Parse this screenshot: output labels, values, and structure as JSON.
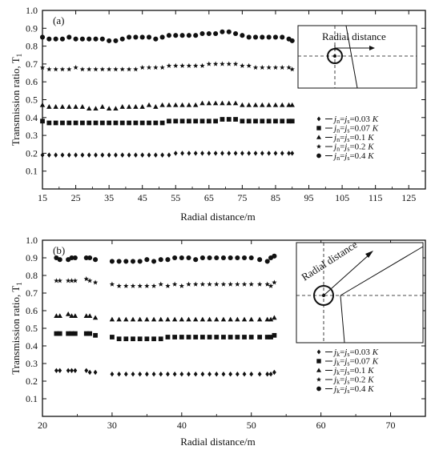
{
  "chart_data": [
    {
      "type": "scatter",
      "panel_label": "(a)",
      "xlabel": "Radial distance/m",
      "ylabel": "Transmission ratio, T",
      "ylabel_sub": "1",
      "xlim": [
        15,
        130
      ],
      "ylim": [
        0.0,
        1.0
      ],
      "xticks": [
        "15",
        "25",
        "35",
        "45",
        "55",
        "65",
        "75",
        "85",
        "95",
        "105",
        "115",
        "125"
      ],
      "yticks": [
        "0.1",
        "0.2",
        "0.3",
        "0.4",
        "0.5",
        "0.6",
        "0.7",
        "0.8",
        "0.9",
        "1.0"
      ],
      "inset_label": "Radial distance",
      "legend": [
        {
          "marker": "diamond",
          "j1": "j",
          "s1": "n",
          "j2": "j",
          "s2": "s",
          "val": "=0.03",
          "K": "K"
        },
        {
          "marker": "square",
          "j1": "j",
          "s1": "n",
          "j2": "j",
          "s2": "s",
          "val": "=0.07",
          "K": "K"
        },
        {
          "marker": "triangle",
          "j1": "j",
          "s1": "n",
          "j2": "j",
          "s2": "s",
          "val": "=0.1",
          "K": "K"
        },
        {
          "marker": "star",
          "j1": "j",
          "s1": "n",
          "j2": "j",
          "s2": "s",
          "val": "=0.2",
          "K": "K"
        },
        {
          "marker": "circle",
          "j1": "j",
          "s1": "n",
          "j2": "j",
          "s2": "s",
          "val": "=0.4",
          "K": "K"
        }
      ],
      "series": [
        {
          "marker": "circle",
          "x": [
            15,
            17,
            19,
            21,
            23,
            25,
            27,
            29,
            31,
            33,
            35,
            37,
            39,
            41,
            43,
            45,
            47,
            49,
            51,
            53,
            55,
            57,
            59,
            61,
            63,
            65,
            67,
            69,
            71,
            73,
            75,
            77,
            79,
            81,
            83,
            85,
            87,
            89,
            90
          ],
          "y": [
            0.85,
            0.84,
            0.84,
            0.84,
            0.85,
            0.84,
            0.84,
            0.84,
            0.84,
            0.84,
            0.83,
            0.83,
            0.84,
            0.85,
            0.85,
            0.85,
            0.85,
            0.84,
            0.85,
            0.86,
            0.86,
            0.86,
            0.86,
            0.86,
            0.87,
            0.87,
            0.87,
            0.88,
            0.88,
            0.87,
            0.86,
            0.85,
            0.85,
            0.85,
            0.85,
            0.85,
            0.85,
            0.84,
            0.83
          ]
        },
        {
          "marker": "star",
          "x": [
            15,
            17,
            19,
            21,
            23,
            25,
            27,
            29,
            31,
            33,
            35,
            37,
            39,
            41,
            43,
            45,
            47,
            49,
            51,
            53,
            55,
            57,
            59,
            61,
            63,
            65,
            67,
            69,
            71,
            73,
            75,
            77,
            79,
            81,
            83,
            85,
            87,
            89,
            90
          ],
          "y": [
            0.68,
            0.67,
            0.67,
            0.67,
            0.67,
            0.68,
            0.67,
            0.67,
            0.67,
            0.67,
            0.67,
            0.67,
            0.67,
            0.67,
            0.67,
            0.68,
            0.68,
            0.68,
            0.68,
            0.69,
            0.69,
            0.69,
            0.69,
            0.69,
            0.69,
            0.7,
            0.7,
            0.7,
            0.7,
            0.7,
            0.69,
            0.69,
            0.68,
            0.68,
            0.68,
            0.68,
            0.68,
            0.68,
            0.67
          ]
        },
        {
          "marker": "triangle",
          "x": [
            15,
            17,
            19,
            21,
            23,
            25,
            27,
            29,
            31,
            33,
            35,
            37,
            39,
            41,
            43,
            45,
            47,
            49,
            51,
            53,
            55,
            57,
            59,
            61,
            63,
            65,
            67,
            69,
            71,
            73,
            75,
            77,
            79,
            81,
            83,
            85,
            87,
            89,
            90
          ],
          "y": [
            0.47,
            0.46,
            0.46,
            0.46,
            0.46,
            0.46,
            0.46,
            0.45,
            0.45,
            0.46,
            0.45,
            0.45,
            0.46,
            0.46,
            0.46,
            0.46,
            0.47,
            0.46,
            0.47,
            0.47,
            0.47,
            0.47,
            0.47,
            0.47,
            0.48,
            0.48,
            0.48,
            0.48,
            0.48,
            0.48,
            0.47,
            0.47,
            0.47,
            0.47,
            0.47,
            0.47,
            0.47,
            0.47,
            0.47
          ]
        },
        {
          "marker": "square",
          "x": [
            15,
            17,
            19,
            21,
            23,
            25,
            27,
            29,
            31,
            33,
            35,
            37,
            39,
            41,
            43,
            45,
            47,
            49,
            51,
            53,
            55,
            57,
            59,
            61,
            63,
            65,
            67,
            69,
            71,
            73,
            75,
            77,
            79,
            81,
            83,
            85,
            87,
            89,
            90
          ],
          "y": [
            0.38,
            0.37,
            0.37,
            0.37,
            0.37,
            0.37,
            0.37,
            0.37,
            0.37,
            0.37,
            0.37,
            0.37,
            0.37,
            0.37,
            0.37,
            0.37,
            0.37,
            0.37,
            0.37,
            0.38,
            0.38,
            0.38,
            0.38,
            0.38,
            0.38,
            0.38,
            0.38,
            0.39,
            0.39,
            0.39,
            0.38,
            0.38,
            0.38,
            0.38,
            0.38,
            0.38,
            0.38,
            0.38,
            0.38
          ]
        },
        {
          "marker": "diamond",
          "x": [
            15,
            17,
            19,
            21,
            23,
            25,
            27,
            29,
            31,
            33,
            35,
            37,
            39,
            41,
            43,
            45,
            47,
            49,
            51,
            53,
            55,
            57,
            59,
            61,
            63,
            65,
            67,
            69,
            71,
            73,
            75,
            77,
            79,
            81,
            83,
            85,
            87,
            89,
            90
          ],
          "y": [
            0.19,
            0.19,
            0.19,
            0.19,
            0.19,
            0.19,
            0.19,
            0.19,
            0.19,
            0.19,
            0.19,
            0.19,
            0.19,
            0.19,
            0.19,
            0.19,
            0.19,
            0.19,
            0.19,
            0.19,
            0.2,
            0.2,
            0.2,
            0.2,
            0.2,
            0.2,
            0.2,
            0.2,
            0.2,
            0.2,
            0.2,
            0.2,
            0.2,
            0.2,
            0.2,
            0.2,
            0.2,
            0.2,
            0.2
          ]
        }
      ]
    },
    {
      "type": "scatter",
      "panel_label": "(b)",
      "xlabel": "Radial distance/m",
      "ylabel": "Transmission ratio, T",
      "ylabel_sub": "1",
      "xlim": [
        20,
        75
      ],
      "ylim": [
        0.0,
        1.0
      ],
      "xticks": [
        "20",
        "30",
        "40",
        "50",
        "60",
        "70"
      ],
      "yticks": [
        "0.1",
        "0.2",
        "0.3",
        "0.4",
        "0.5",
        "0.6",
        "0.7",
        "0.8",
        "0.9",
        "1.0"
      ],
      "inset_label": "Radial distance",
      "legend": [
        {
          "marker": "diamond",
          "j1": "j",
          "s1": "k",
          "j2": "j",
          "s2": "s",
          "val": "=0.03",
          "K": "K"
        },
        {
          "marker": "square",
          "j1": "j",
          "s1": "k",
          "j2": "j",
          "s2": "s",
          "val": "=0.07",
          "K": "K"
        },
        {
          "marker": "triangle",
          "j1": "j",
          "s1": "k",
          "j2": "j",
          "s2": "s",
          "val": "=0.1",
          "K": "K"
        },
        {
          "marker": "star",
          "j1": "j",
          "s1": "k",
          "j2": "j",
          "s2": "s",
          "val": "=0.2",
          "K": "K"
        },
        {
          "marker": "circle",
          "j1": "j",
          "s1": "k",
          "j2": "j",
          "s2": "s",
          "val": "=0.4",
          "K": "K"
        }
      ],
      "series": [
        {
          "marker": "circle",
          "x": [
            22,
            22.5,
            23.7,
            24.2,
            24.7,
            26.3,
            26.8,
            27.6,
            30,
            31,
            32,
            33,
            34,
            35,
            36,
            37,
            38,
            39,
            40,
            41,
            42,
            43,
            44,
            45,
            46,
            47,
            48,
            49,
            50,
            51.2,
            52.3,
            52.8,
            53.3
          ],
          "y": [
            0.9,
            0.89,
            0.89,
            0.9,
            0.9,
            0.9,
            0.9,
            0.89,
            0.88,
            0.88,
            0.88,
            0.88,
            0.88,
            0.89,
            0.88,
            0.89,
            0.89,
            0.9,
            0.9,
            0.9,
            0.89,
            0.9,
            0.9,
            0.9,
            0.9,
            0.9,
            0.9,
            0.9,
            0.9,
            0.89,
            0.88,
            0.9,
            0.91
          ]
        },
        {
          "marker": "star",
          "x": [
            22,
            22.5,
            23.7,
            24.2,
            24.7,
            26.3,
            26.8,
            27.6,
            30,
            31,
            32,
            33,
            34,
            35,
            36,
            37,
            38,
            39,
            40,
            41,
            42,
            43,
            44,
            45,
            46,
            47,
            48,
            49,
            50,
            51.2,
            52.3,
            52.8,
            53.3
          ],
          "y": [
            0.77,
            0.77,
            0.77,
            0.77,
            0.77,
            0.78,
            0.77,
            0.76,
            0.75,
            0.74,
            0.74,
            0.74,
            0.74,
            0.74,
            0.74,
            0.75,
            0.74,
            0.75,
            0.74,
            0.75,
            0.75,
            0.75,
            0.75,
            0.75,
            0.75,
            0.75,
            0.75,
            0.75,
            0.75,
            0.75,
            0.75,
            0.74,
            0.76
          ]
        },
        {
          "marker": "triangle",
          "x": [
            22,
            22.5,
            23.7,
            24.2,
            24.7,
            26.3,
            26.8,
            27.6,
            30,
            31,
            32,
            33,
            34,
            35,
            36,
            37,
            38,
            39,
            40,
            41,
            42,
            43,
            44,
            45,
            46,
            47,
            48,
            49,
            50,
            51.2,
            52.3,
            52.8,
            53.3
          ],
          "y": [
            0.57,
            0.57,
            0.58,
            0.57,
            0.57,
            0.57,
            0.57,
            0.56,
            0.55,
            0.55,
            0.55,
            0.55,
            0.55,
            0.55,
            0.55,
            0.55,
            0.55,
            0.55,
            0.55,
            0.55,
            0.55,
            0.55,
            0.55,
            0.55,
            0.55,
            0.55,
            0.55,
            0.55,
            0.55,
            0.55,
            0.55,
            0.55,
            0.56
          ]
        },
        {
          "marker": "square",
          "x": [
            22,
            22.5,
            23.7,
            24.2,
            24.7,
            26.3,
            26.8,
            27.6,
            30,
            31,
            32,
            33,
            34,
            35,
            36,
            37,
            38,
            39,
            40,
            41,
            42,
            43,
            44,
            45,
            46,
            47,
            48,
            49,
            50,
            51.2,
            52.3,
            52.8,
            53.3
          ],
          "y": [
            0.47,
            0.47,
            0.47,
            0.47,
            0.47,
            0.47,
            0.47,
            0.46,
            0.45,
            0.44,
            0.44,
            0.44,
            0.44,
            0.44,
            0.44,
            0.44,
            0.45,
            0.45,
            0.45,
            0.45,
            0.45,
            0.45,
            0.45,
            0.45,
            0.45,
            0.45,
            0.45,
            0.45,
            0.45,
            0.45,
            0.45,
            0.45,
            0.46
          ]
        },
        {
          "marker": "diamond",
          "x": [
            22,
            22.5,
            23.7,
            24.2,
            24.7,
            26.3,
            26.8,
            27.6,
            30,
            31,
            32,
            33,
            34,
            35,
            36,
            37,
            38,
            39,
            40,
            41,
            42,
            43,
            44,
            45,
            46,
            47,
            48,
            49,
            50,
            51.2,
            52.3,
            52.8,
            53.3
          ],
          "y": [
            0.26,
            0.26,
            0.26,
            0.26,
            0.26,
            0.26,
            0.25,
            0.25,
            0.24,
            0.24,
            0.24,
            0.24,
            0.24,
            0.24,
            0.24,
            0.24,
            0.24,
            0.24,
            0.24,
            0.24,
            0.24,
            0.24,
            0.24,
            0.24,
            0.24,
            0.24,
            0.24,
            0.24,
            0.24,
            0.24,
            0.24,
            0.24,
            0.25
          ]
        }
      ]
    }
  ]
}
